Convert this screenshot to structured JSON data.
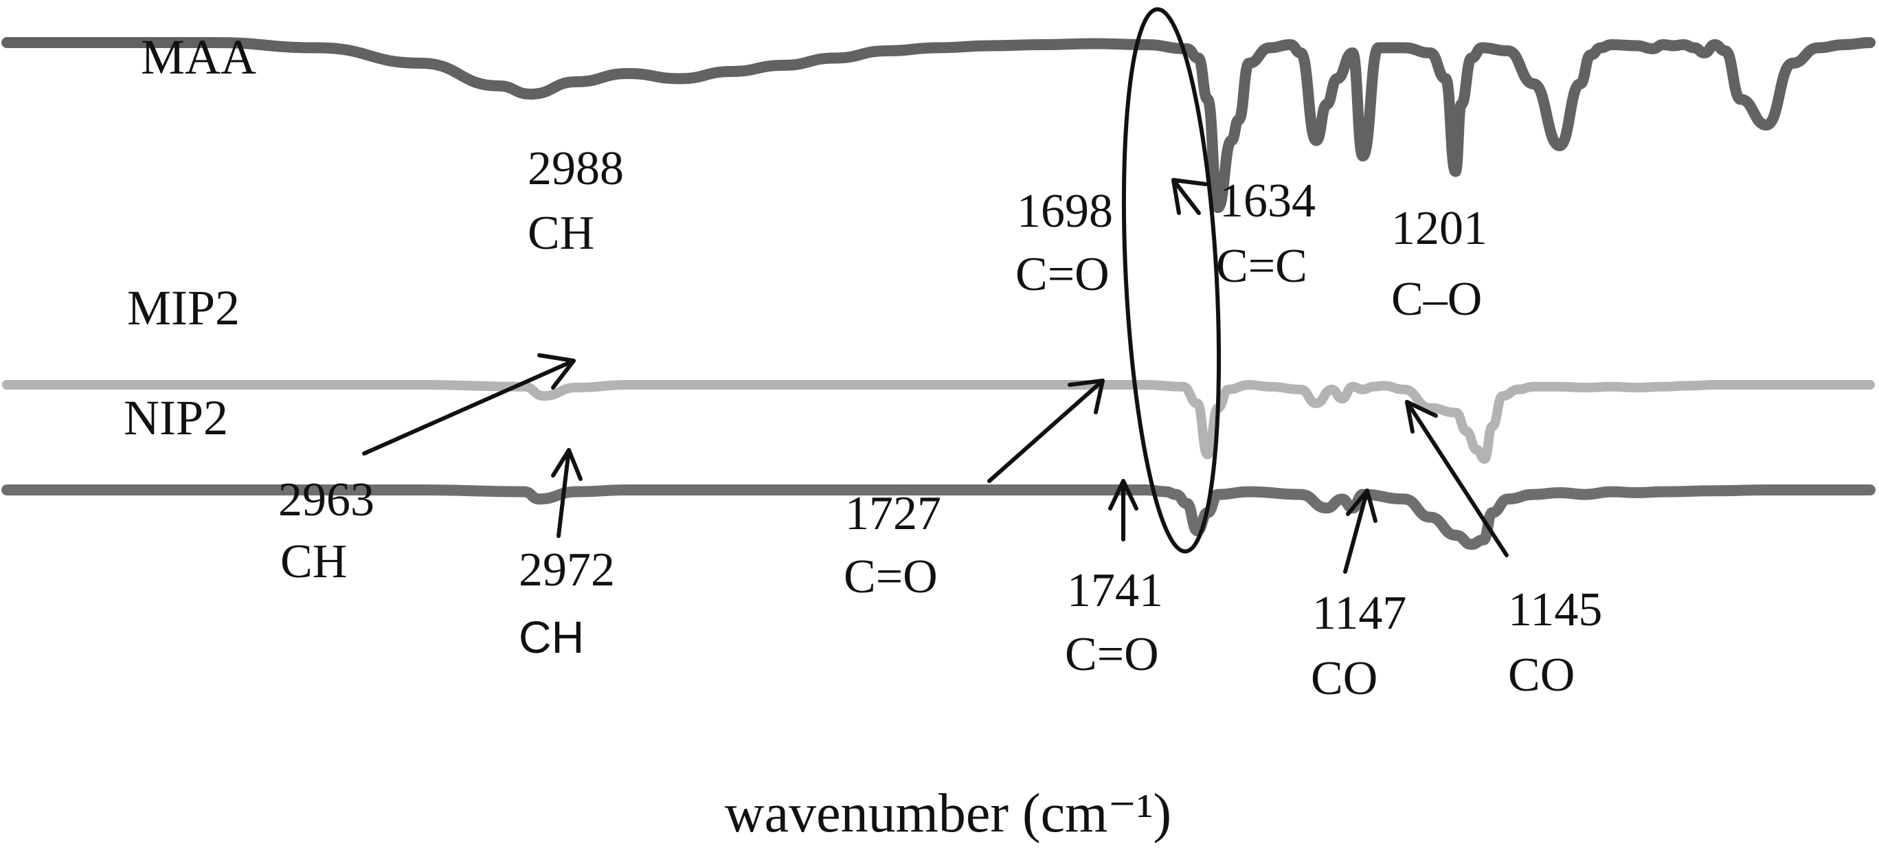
{
  "chart_data": {
    "type": "line",
    "title": "",
    "xlabel": "wavenumber (cm⁻¹)",
    "ylabel": "",
    "x_direction": "decreasing",
    "xlim": [
      4000,
      400
    ],
    "grid": false,
    "legend": "none",
    "series": [
      {
        "name": "MAA",
        "color": "#626262",
        "x": [
          4000,
          3800,
          3600,
          3400,
          3200,
          3050,
          2988,
          2900,
          2800,
          2700,
          2600,
          2500,
          2400,
          2300,
          2200,
          2100,
          2000,
          1900,
          1800,
          1720,
          1698,
          1680,
          1660,
          1634,
          1620,
          1600,
          1560,
          1520,
          1500,
          1470,
          1450,
          1430,
          1400,
          1380,
          1350,
          1300,
          1250,
          1220,
          1201,
          1190,
          1170,
          1150,
          1100,
          1050,
          1000,
          960,
          940,
          920,
          900,
          850,
          820,
          800,
          780,
          760,
          740,
          720,
          700,
          680,
          650,
          600,
          550,
          500,
          450,
          400
        ],
        "values": [
          0,
          0,
          0,
          -0.05,
          -0.2,
          -0.42,
          -0.5,
          -0.38,
          -0.3,
          -0.35,
          -0.28,
          -0.22,
          -0.15,
          -0.08,
          -0.05,
          -0.03,
          -0.02,
          -0.01,
          -0.02,
          -0.06,
          -0.15,
          -0.55,
          -1.6,
          -0.95,
          -0.75,
          -0.2,
          -0.05,
          -0.02,
          -0.1,
          -0.95,
          -0.6,
          -0.35,
          -0.1,
          -1.1,
          -0.05,
          -0.05,
          -0.1,
          -0.35,
          -1.25,
          -0.6,
          -0.15,
          -0.05,
          -0.08,
          -0.4,
          -1.0,
          -0.4,
          -0.12,
          -0.05,
          -0.02,
          -0.03,
          -0.06,
          -0.02,
          -0.03,
          -0.02,
          -0.05,
          -0.1,
          -0.02,
          -0.08,
          -0.55,
          -0.8,
          -0.2,
          -0.05,
          -0.02,
          0
        ]
      },
      {
        "name": "MIP2",
        "color": "#b3b3b3",
        "x": [
          4000,
          3600,
          3200,
          3000,
          2963,
          2900,
          2800,
          2600,
          2400,
          2200,
          2000,
          1800,
          1727,
          1700,
          1680,
          1660,
          1640,
          1600,
          1560,
          1500,
          1470,
          1440,
          1420,
          1400,
          1380,
          1360,
          1340,
          1300,
          1250,
          1200,
          1180,
          1160,
          1145,
          1130,
          1110,
          1080,
          1050,
          1000,
          950,
          900,
          850,
          800,
          750,
          700,
          600,
          500,
          400
        ],
        "values": [
          0,
          0,
          0,
          -0.02,
          -0.12,
          -0.03,
          0,
          0,
          0,
          0,
          0,
          0,
          -0.02,
          -0.2,
          -0.75,
          -0.25,
          -0.05,
          0,
          -0.02,
          -0.05,
          -0.2,
          -0.05,
          -0.15,
          -0.02,
          -0.05,
          -0.02,
          -0.01,
          -0.05,
          -0.25,
          -0.3,
          -0.5,
          -0.7,
          -0.8,
          -0.45,
          -0.12,
          -0.05,
          -0.02,
          -0.02,
          -0.03,
          -0.02,
          -0.03,
          -0.02,
          -0.01,
          0,
          0,
          0,
          0
        ]
      },
      {
        "name": "NIP2",
        "color": "#6e6e6e",
        "x": [
          4000,
          3600,
          3200,
          3000,
          2972,
          2900,
          2800,
          2600,
          2400,
          2200,
          2000,
          1800,
          1760,
          1741,
          1720,
          1700,
          1680,
          1660,
          1600,
          1500,
          1450,
          1420,
          1400,
          1380,
          1300,
          1250,
          1200,
          1170,
          1147,
          1130,
          1100,
          1050,
          1000,
          950,
          900,
          850,
          800,
          700,
          600,
          500,
          400
        ],
        "values": [
          0,
          0,
          0,
          -0.02,
          -0.1,
          -0.02,
          0,
          0,
          0,
          0,
          0,
          0,
          -0.02,
          -0.05,
          -0.15,
          -0.45,
          -0.25,
          -0.05,
          -0.02,
          -0.05,
          -0.2,
          -0.1,
          -0.2,
          -0.05,
          -0.1,
          -0.3,
          -0.5,
          -0.6,
          -0.55,
          -0.25,
          -0.1,
          -0.05,
          -0.03,
          -0.05,
          -0.02,
          -0.03,
          -0.02,
          -0.01,
          0,
          0,
          0
        ]
      }
    ],
    "annotations": [
      {
        "value": "2988",
        "group": "CH",
        "series": "MAA"
      },
      {
        "value": "1698",
        "group": "C=O",
        "series": "MAA"
      },
      {
        "value": "1634",
        "group": "C=C",
        "series": "MAA"
      },
      {
        "value": "1201",
        "group": "C–O",
        "series": "MAA"
      },
      {
        "value": "2963",
        "group": "CH",
        "series": "MIP2"
      },
      {
        "value": "2972",
        "group": "CH",
        "series": "NIP2"
      },
      {
        "value": "1727",
        "group": "C=O",
        "series": "MIP2"
      },
      {
        "value": "1741",
        "group": "C=O",
        "series": "NIP2"
      },
      {
        "value": "1147",
        "group": "CO",
        "series": "NIP2"
      },
      {
        "value": "1145",
        "group": "CO",
        "series": "MIP2"
      }
    ]
  }
}
